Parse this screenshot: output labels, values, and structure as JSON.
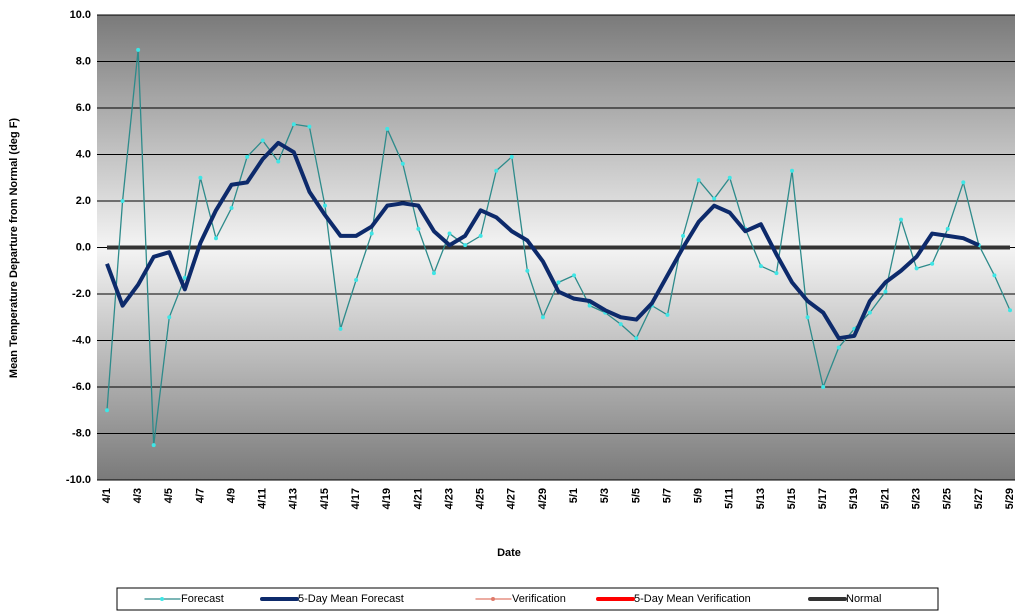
{
  "chart_data": {
    "type": "line",
    "x_label": "Date",
    "y_label": "Mean Temperature Departure from Normal (deg F)",
    "categories": [
      "4/1",
      null,
      "4/3",
      null,
      "4/5",
      null,
      "4/7",
      null,
      "4/9",
      null,
      "4/11",
      null,
      "4/13",
      null,
      "4/15",
      null,
      "4/17",
      null,
      "4/19",
      null,
      "4/21",
      null,
      "4/23",
      null,
      "4/25",
      null,
      "4/27",
      null,
      "4/29",
      null,
      "5/1",
      null,
      "5/3",
      null,
      "5/5",
      null,
      "5/7",
      null,
      "5/9",
      null,
      "5/11",
      null,
      "5/13",
      null,
      "5/15",
      null,
      "5/17",
      null,
      "5/19",
      null,
      "5/21",
      null,
      "5/23",
      null,
      "5/25",
      null,
      "5/27",
      null,
      "5/29"
    ],
    "series": [
      {
        "name": "Forecast",
        "color": "#2e8b8b",
        "marker_color": "#3ee6e6",
        "width": 1.3,
        "values": [
          -7.0,
          2.0,
          8.5,
          -8.5,
          -3.0,
          -1.3,
          3.0,
          0.4,
          1.7,
          3.9,
          4.6,
          3.7,
          5.3,
          5.2,
          1.8,
          -3.5,
          -1.4,
          0.6,
          5.1,
          3.6,
          0.8,
          -1.1,
          0.6,
          0.1,
          0.5,
          3.3,
          3.9,
          -1.0,
          -3.0,
          -1.5,
          -1.2,
          -2.5,
          -2.8,
          -3.3,
          -3.9,
          -2.5,
          -2.9,
          0.5,
          2.9,
          2.1,
          3.0,
          0.8,
          -0.8,
          -1.1,
          3.3,
          -3.0,
          -6.0,
          -4.3,
          -3.5,
          -2.8,
          -1.9,
          1.2,
          -0.9,
          -0.7,
          0.8,
          2.8,
          0.1,
          -1.2,
          -2.7
        ]
      },
      {
        "name": "5-Day Mean Forecast",
        "color": "#0d2a6b",
        "width": 4,
        "values": [
          -0.7,
          -2.5,
          -1.6,
          -0.4,
          -0.2,
          -1.8,
          0.2,
          1.6,
          2.7,
          2.8,
          3.8,
          4.5,
          4.1,
          2.4,
          1.4,
          0.5,
          0.5,
          0.9,
          1.8,
          1.9,
          1.8,
          0.7,
          0.1,
          0.5,
          1.6,
          1.3,
          0.7,
          0.3,
          -0.6,
          -1.9,
          -2.2,
          -2.3,
          -2.7,
          -3.0,
          -3.1,
          -2.4,
          -1.2,
          0.0,
          1.1,
          1.8,
          1.5,
          0.7,
          1.0,
          -0.3,
          -1.5,
          -2.3,
          -2.8,
          -3.9,
          -3.8,
          -2.3,
          -1.5,
          -1.0,
          -0.4,
          0.6,
          0.5,
          0.4,
          0.1,
          null,
          null
        ]
      },
      {
        "name": "Verification",
        "color": "#e07a6a",
        "marker_color": "#e07a6a",
        "width": 1.3,
        "values": [
          null,
          null,
          null,
          null,
          null,
          null,
          null,
          null,
          null,
          null,
          null,
          null,
          null,
          null,
          null,
          null,
          null,
          null,
          null,
          null,
          null,
          null,
          null,
          null,
          null,
          null,
          null,
          null,
          null,
          null,
          null,
          null,
          null,
          null,
          null,
          null,
          null,
          null,
          null,
          null,
          null,
          null,
          null,
          null,
          null,
          null,
          null,
          null,
          null,
          null,
          null,
          null,
          null,
          null,
          null,
          null,
          null,
          null,
          null
        ]
      },
      {
        "name": "5-Day Mean Verification",
        "color": "#ff0000",
        "width": 4,
        "values": [
          null,
          null,
          null,
          null,
          null,
          null,
          null,
          null,
          null,
          null,
          null,
          null,
          null,
          null,
          null,
          null,
          null,
          null,
          null,
          null,
          null,
          null,
          null,
          null,
          null,
          null,
          null,
          null,
          null,
          null,
          null,
          null,
          null,
          null,
          null,
          null,
          null,
          null,
          null,
          null,
          null,
          null,
          null,
          null,
          null,
          null,
          null,
          null,
          null,
          null,
          null,
          null,
          null,
          null,
          null,
          null,
          null,
          null,
          null
        ]
      },
      {
        "name": "Normal",
        "color": "#333333",
        "width": 4,
        "values": [
          0,
          0,
          0,
          0,
          0,
          0,
          0,
          0,
          0,
          0,
          0,
          0,
          0,
          0,
          0,
          0,
          0,
          0,
          0,
          0,
          0,
          0,
          0,
          0,
          0,
          0,
          0,
          0,
          0,
          0,
          0,
          0,
          0,
          0,
          0,
          0,
          0,
          0,
          0,
          0,
          0,
          0,
          0,
          0,
          0,
          0,
          0,
          0,
          0,
          0,
          0,
          0,
          0,
          0,
          0,
          0,
          0,
          0,
          0
        ]
      }
    ],
    "ylim": [
      -10,
      10
    ],
    "yticks": [
      {
        "value": -10,
        "label": "-10.0"
      },
      {
        "value": -8,
        "label": "-8.0"
      },
      {
        "value": -6,
        "label": "-6.0"
      },
      {
        "value": -4,
        "label": "-4.0"
      },
      {
        "value": -2,
        "label": "-2.0"
      },
      {
        "value": 0,
        "label": "0.0"
      },
      {
        "value": 2,
        "label": "2.0"
      },
      {
        "value": 4,
        "label": "4.0"
      },
      {
        "value": 6,
        "label": "6.0"
      },
      {
        "value": 8,
        "label": "8.0"
      },
      {
        "value": 10,
        "label": "10.0"
      }
    ],
    "grid": true,
    "legend": "bottom"
  }
}
